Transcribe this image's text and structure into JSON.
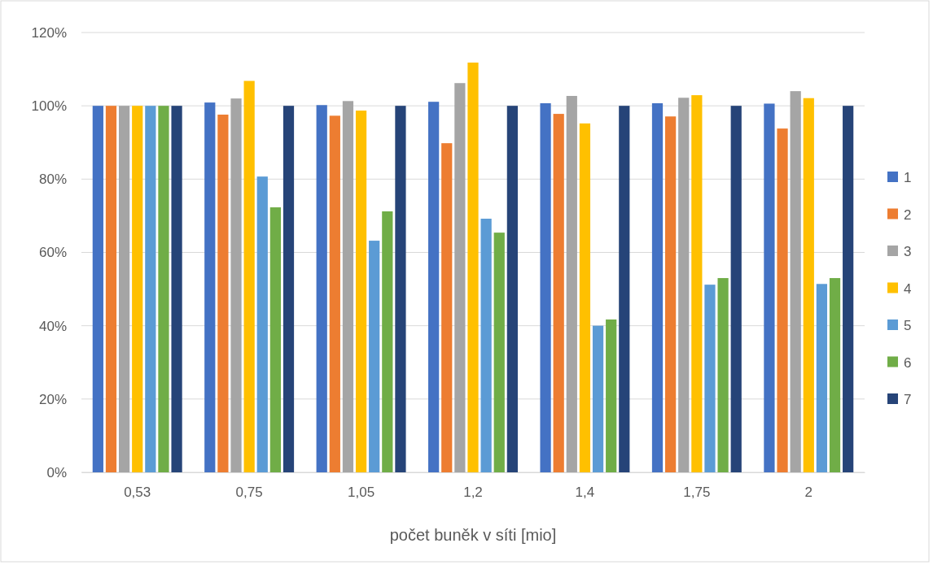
{
  "chart_data": {
    "type": "bar",
    "xlabel": "počet buněk v síti [mio]",
    "categories": [
      "0,53",
      "0,75",
      "1,05",
      "1,2",
      "1,4",
      "1,75",
      "2"
    ],
    "series": [
      {
        "name": "1",
        "color": "#4472c4",
        "values": [
          100,
          100.9,
          100.2,
          101.1,
          100.7,
          100.7,
          100.6
        ]
      },
      {
        "name": "2",
        "color": "#ed7d31",
        "values": [
          100,
          97.6,
          97.3,
          89.8,
          97.8,
          97.1,
          93.8
        ]
      },
      {
        "name": "3",
        "color": "#a5a5a5",
        "values": [
          100,
          102,
          101.3,
          106.2,
          102.7,
          102.2,
          104
        ]
      },
      {
        "name": "4",
        "color": "#ffc000",
        "values": [
          100,
          106.8,
          98.7,
          111.8,
          95.2,
          102.9,
          102.1
        ]
      },
      {
        "name": "5",
        "color": "#5b9bd5",
        "values": [
          100,
          80.7,
          63.2,
          69.2,
          40,
          51.2,
          51.4
        ]
      },
      {
        "name": "6",
        "color": "#70ad47",
        "values": [
          100,
          72.3,
          71.2,
          65.4,
          41.7,
          53,
          53
        ]
      },
      {
        "name": "7",
        "color": "#264478",
        "values": [
          100,
          100,
          100,
          100,
          100,
          100,
          100
        ]
      }
    ],
    "ylim": [
      0,
      120
    ],
    "yticks": [
      {
        "value": 0,
        "label": "0%"
      },
      {
        "value": 20,
        "label": "20%"
      },
      {
        "value": 40,
        "label": "40%"
      },
      {
        "value": 60,
        "label": "60%"
      },
      {
        "value": 80,
        "label": "80%"
      },
      {
        "value": 100,
        "label": "100%"
      },
      {
        "value": 120,
        "label": "120%"
      }
    ],
    "grid": "y",
    "legend": "right"
  }
}
